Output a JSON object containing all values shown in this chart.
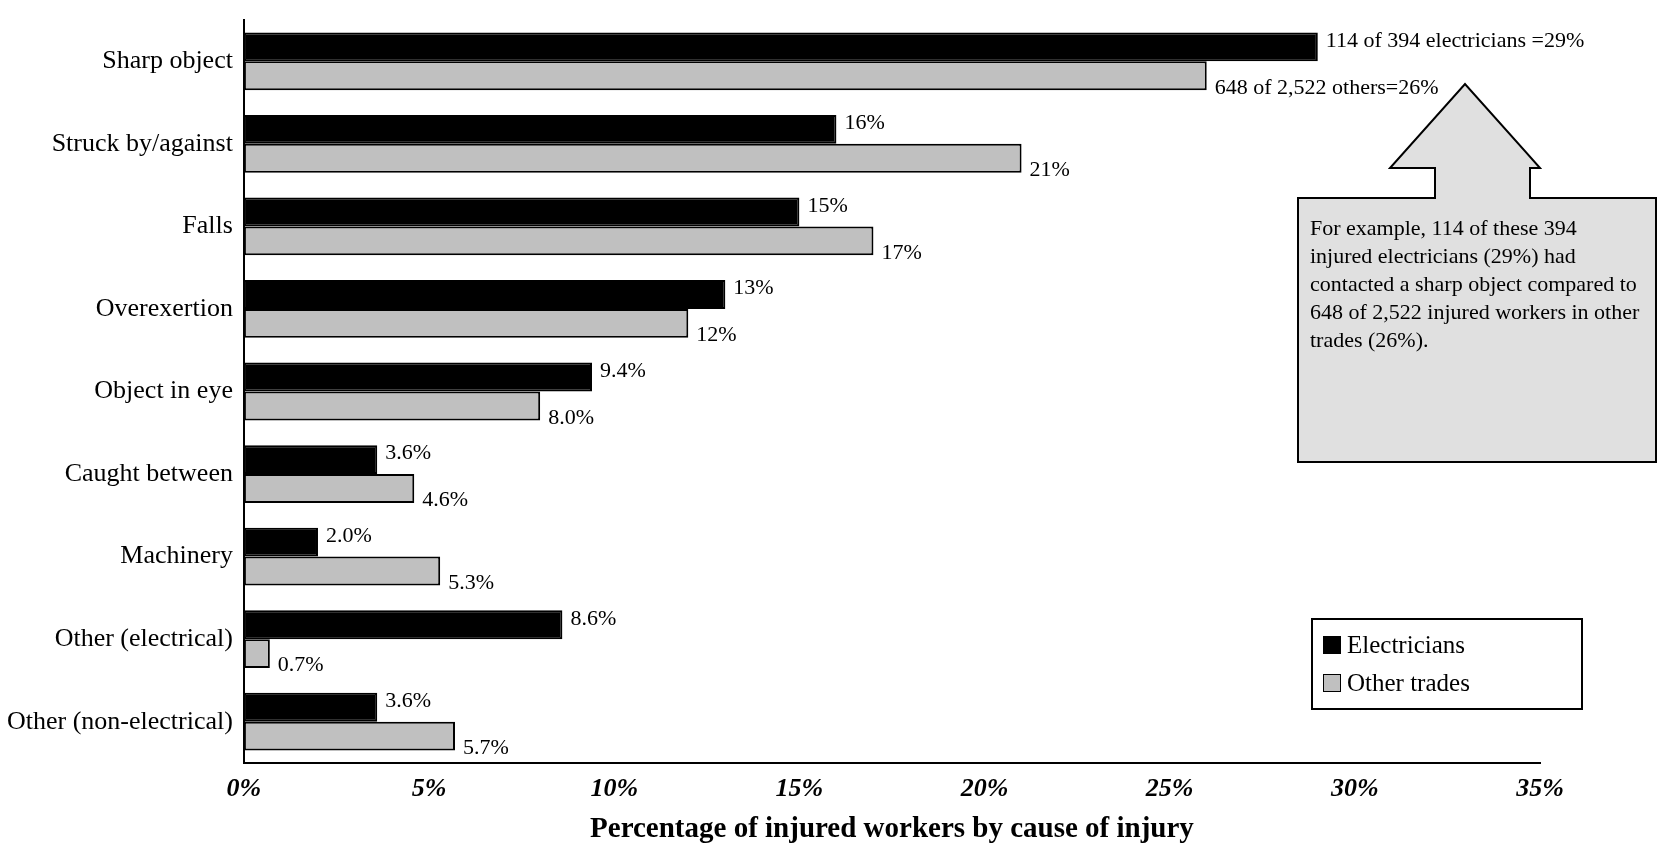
{
  "chart_data": {
    "type": "bar",
    "orientation": "horizontal",
    "xlabel": "Percentage of injured workers by cause of injury",
    "categories": [
      "Sharp object",
      "Struck by/against",
      "Falls",
      "Overexertion",
      "Object in eye",
      "Caught between",
      "Machinery",
      "Other (electrical)",
      "Other (non-electrical)"
    ],
    "series": [
      {
        "name": "Electricians",
        "color": "#000000",
        "values": [
          29,
          16,
          15,
          13,
          9.4,
          3.6,
          2.0,
          8.6,
          3.6
        ],
        "value_labels": [
          "114 of 394 electricians =29%",
          "16%",
          "15%",
          "13%",
          "9.4%",
          "3.6%",
          "2.0%",
          "8.6%",
          "3.6%"
        ]
      },
      {
        "name": "Other trades",
        "color": "#c0c0c0",
        "values": [
          26,
          21,
          17,
          12,
          8.0,
          4.6,
          5.3,
          0.7,
          5.7
        ],
        "value_labels": [
          "648 of 2,522 others=26%",
          "21%",
          "17%",
          "12%",
          "8.0%",
          "4.6%",
          "5.3%",
          "0.7%",
          "5.7%"
        ]
      }
    ],
    "xlim": [
      0,
      35
    ],
    "xticks": [
      {
        "value": 0,
        "label": "0%"
      },
      {
        "value": 5,
        "label": "5%"
      },
      {
        "value": 10,
        "label": "10%"
      },
      {
        "value": 15,
        "label": "15%"
      },
      {
        "value": 20,
        "label": "20%"
      },
      {
        "value": 25,
        "label": "25%"
      },
      {
        "value": 30,
        "label": "30%"
      },
      {
        "value": 35,
        "label": "35%"
      }
    ],
    "legend": "bottom right",
    "grid": false,
    "annotations": [
      "For example, 114 of these 394 injured electricians (29%) had contacted a sharp object compared to 648 of 2,522 injured workers in other trades (26%)."
    ]
  }
}
